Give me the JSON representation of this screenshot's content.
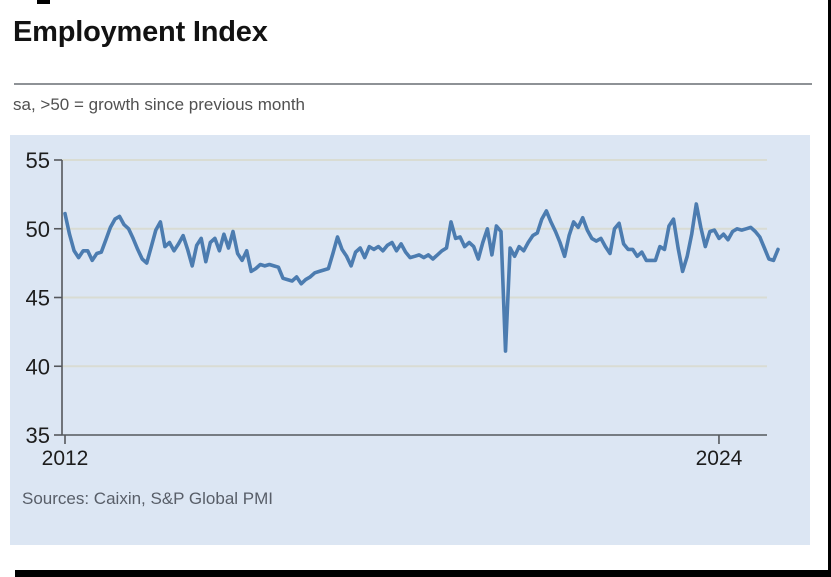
{
  "header": {
    "title": "Employment Index",
    "subtitle": "sa, >50 = growth since previous month"
  },
  "footer": {
    "sources": "Sources: Caixin, S&P Global PMI"
  },
  "colors": {
    "line": "#4c7cb0",
    "plot_background": "#dce6f3",
    "gridline": "#d9dcd3",
    "axis": "#55585c",
    "tick_text": "#1d1d1d",
    "title_text": "#121212",
    "muted_text": "#585e68"
  },
  "chart_data": {
    "type": "line",
    "title": "Employment Index",
    "subtitle": "sa, >50 = growth since previous month",
    "sources": "Sources: Caixin, S&P Global PMI",
    "x_start": "2012-01",
    "x_end": "2025-02",
    "frequency": "monthly",
    "ylim": [
      35,
      55
    ],
    "y_ticks": [
      55,
      50,
      45,
      40,
      35
    ],
    "x_ticks": [
      {
        "label": "2012",
        "month_index": 0
      },
      {
        "label": "2024",
        "month_index": 144
      }
    ],
    "grid": true,
    "legend": "none",
    "line_color": "#4c7cb0",
    "plot_bg": "#dce6f3",
    "series": [
      {
        "name": "Employment Index (sa)",
        "values": [
          51.1,
          49.6,
          48.4,
          47.9,
          48.4,
          48.4,
          47.7,
          48.2,
          48.3,
          49.2,
          50.1,
          50.7,
          50.9,
          50.3,
          50.0,
          49.3,
          48.5,
          47.8,
          47.5,
          48.7,
          49.9,
          50.5,
          48.7,
          49.0,
          48.4,
          48.9,
          49.5,
          48.5,
          47.3,
          48.8,
          49.3,
          47.6,
          49.0,
          49.3,
          48.4,
          49.6,
          48.6,
          49.8,
          48.2,
          47.7,
          48.4,
          46.9,
          47.1,
          47.4,
          47.3,
          47.4,
          47.3,
          47.2,
          46.4,
          46.3,
          46.2,
          46.5,
          46.0,
          46.3,
          46.5,
          46.8,
          46.9,
          47.0,
          47.1,
          48.2,
          49.4,
          48.5,
          48.0,
          47.3,
          48.3,
          48.6,
          47.9,
          48.7,
          48.5,
          48.7,
          48.4,
          48.8,
          49.0,
          48.4,
          48.9,
          48.3,
          47.9,
          48.0,
          48.1,
          47.9,
          48.1,
          47.8,
          48.1,
          48.4,
          48.6,
          50.5,
          49.3,
          49.4,
          48.7,
          49.0,
          48.7,
          47.8,
          49.0,
          50.0,
          48.1,
          50.2,
          49.8,
          41.1,
          48.6,
          48.0,
          48.7,
          48.4,
          49.0,
          49.5,
          49.7,
          50.7,
          51.3,
          50.5,
          49.8,
          49.0,
          48.0,
          49.5,
          50.5,
          50.1,
          50.8,
          49.9,
          49.3,
          49.1,
          49.3,
          48.7,
          48.2,
          50.0,
          50.4,
          48.9,
          48.5,
          48.5,
          48.0,
          48.3,
          47.7,
          47.7,
          47.7,
          48.7,
          48.5,
          50.2,
          50.7,
          48.6,
          46.9,
          48.0,
          49.6,
          51.8,
          50.1,
          48.7,
          49.8,
          49.9,
          49.3,
          49.6,
          49.2,
          49.8,
          50.0,
          49.9,
          50.0,
          50.1,
          49.8,
          49.4,
          48.6,
          47.8,
          47.7,
          48.5
        ]
      }
    ]
  }
}
